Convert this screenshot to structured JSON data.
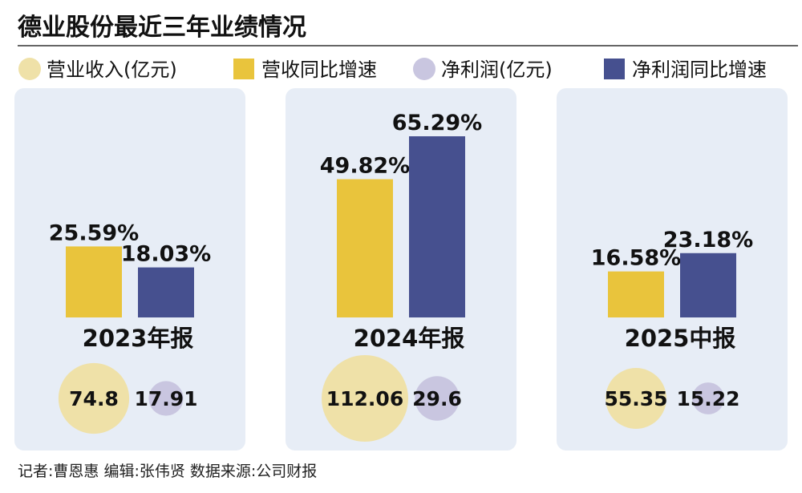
{
  "title": "德业股份最近三年业绩情况",
  "legend": [
    {
      "label": "营业收入(亿元)",
      "shape": "circle",
      "color": "#efe1a8"
    },
    {
      "label": "营收同比增速",
      "shape": "square",
      "color": "#e9c43c"
    },
    {
      "label": "净利润(亿元)",
      "shape": "circle",
      "color": "#c9c6e0"
    },
    {
      "label": "净利润同比增速",
      "shape": "square",
      "color": "#46508f"
    }
  ],
  "colors": {
    "panel_bg": "#e7edf6",
    "revenue_growth_bar": "#e9c43c",
    "profit_growth_bar": "#46508f",
    "revenue_bubble": "#efe1a8",
    "profit_bubble": "#c9c6e0",
    "rule_line": "#333333"
  },
  "chart_data": {
    "type": "bar",
    "categories": [
      "2023年报",
      "2024年报",
      "2025中报"
    ],
    "series": [
      {
        "name": "营收同比增速",
        "values": [
          25.59,
          49.82,
          16.58
        ],
        "labels": [
          "25.59%",
          "49.82%",
          "16.58%"
        ],
        "color": "#e9c43c"
      },
      {
        "name": "净利润同比增速",
        "values": [
          18.03,
          65.29,
          23.18
        ],
        "labels": [
          "18.03%",
          "65.29%",
          "23.18%"
        ],
        "color": "#46508f"
      }
    ],
    "bubbles": [
      {
        "name": "营业收入(亿元)",
        "values": [
          74.8,
          112.06,
          55.35
        ],
        "labels": [
          "74.8",
          "112.06",
          "55.35"
        ],
        "color": "#efe1a8"
      },
      {
        "name": "净利润(亿元)",
        "values": [
          17.91,
          29.6,
          15.22
        ],
        "labels": [
          "17.91",
          "29.6",
          "15.22"
        ],
        "color": "#c9c6e0"
      }
    ],
    "grid": false,
    "legend_position": "top"
  },
  "footer": "记者:曹恩惠   编辑:张伟贤   数据来源:公司财报"
}
